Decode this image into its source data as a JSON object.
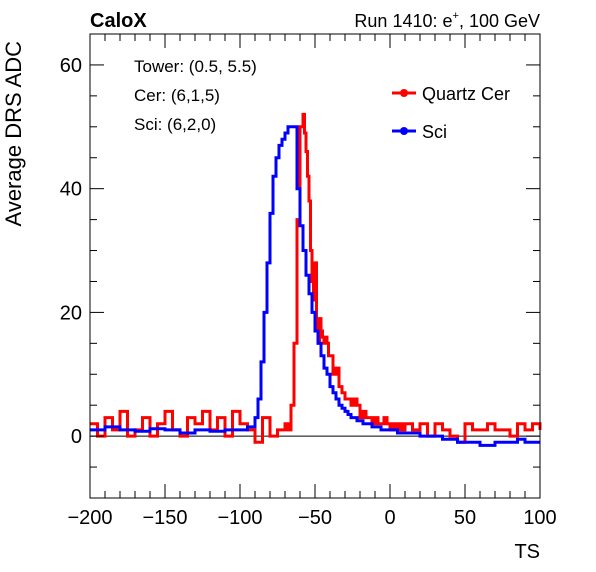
{
  "header": {
    "brand": "CaloX",
    "run_prefix": "Run 1410: e",
    "run_sup": "+",
    "run_suffix": ", 100 GeV"
  },
  "info": {
    "tower": "Tower: (0.5, 5.5)",
    "cer": "Cer: (6,1,5)",
    "sci": "Sci: (6,2,0)"
  },
  "colors": {
    "cer": "#ff0000",
    "sci": "#0000ff",
    "axis": "#000000"
  },
  "chart_data": {
    "type": "line",
    "title": "",
    "xlabel": "TS",
    "ylabel": "Average DRS ADC",
    "xlim": [
      -200,
      100
    ],
    "ylim": [
      -10,
      65
    ],
    "x_ticks": [
      -200,
      -150,
      -100,
      -50,
      0,
      50,
      100
    ],
    "x_tick_labels": [
      "−200",
      "−150",
      "−100",
      "−50",
      "0",
      "50",
      "100"
    ],
    "y_ticks": [
      0,
      20,
      40,
      60
    ],
    "y_tick_labels": [
      "0",
      "20",
      "40",
      "60"
    ],
    "grid": false,
    "zero_line": true,
    "legend_position": "top-right",
    "series": [
      {
        "name": "Quartz Cer",
        "color": "#ff0000",
        "x": [
          -200,
          -195,
          -190,
          -185,
          -180,
          -175,
          -170,
          -165,
          -160,
          -155,
          -150,
          -145,
          -140,
          -135,
          -130,
          -125,
          -120,
          -115,
          -110,
          -105,
          -100,
          -95,
          -90,
          -85,
          -80,
          -75,
          -70,
          -68,
          -66,
          -64,
          -62,
          -60,
          -58,
          -57,
          -56,
          -55,
          -54,
          -53,
          -52,
          -51,
          -50,
          -49,
          -48,
          -47,
          -46,
          -45,
          -44,
          -43,
          -42,
          -41,
          -40,
          -38,
          -36,
          -34,
          -32,
          -30,
          -28,
          -26,
          -24,
          -22,
          -20,
          -18,
          -16,
          -14,
          -12,
          -10,
          -8,
          -6,
          -4,
          -2,
          0,
          2,
          4,
          6,
          8,
          10,
          15,
          20,
          25,
          30,
          35,
          40,
          45,
          50,
          55,
          60,
          65,
          70,
          75,
          80,
          85,
          90,
          95,
          100
        ],
        "y": [
          2,
          0,
          3,
          1,
          4,
          0,
          1,
          3,
          0,
          2,
          4,
          1,
          0,
          3,
          2,
          4,
          1,
          3,
          0,
          4,
          2,
          1,
          -1,
          3,
          0,
          1,
          2,
          1,
          5,
          15,
          35,
          50,
          52,
          49,
          46,
          42,
          38,
          30,
          25,
          22,
          28,
          18,
          15,
          19,
          17,
          16,
          15,
          16,
          15,
          13,
          13,
          10,
          11,
          8,
          7,
          6,
          6,
          5,
          6,
          5,
          3,
          4,
          3,
          3,
          2,
          3,
          2,
          2,
          3,
          2,
          1,
          2,
          1,
          2,
          1,
          2,
          1,
          2,
          0,
          2,
          1,
          0,
          -1,
          2,
          1,
          1,
          2,
          1,
          1,
          0,
          2,
          1,
          2,
          1
        ]
      },
      {
        "name": "Sci",
        "color": "#0000ff",
        "x": [
          -200,
          -190,
          -180,
          -170,
          -160,
          -150,
          -140,
          -130,
          -120,
          -110,
          -100,
          -95,
          -90,
          -88,
          -86,
          -84,
          -82,
          -80,
          -78,
          -76,
          -74,
          -72,
          -70,
          -68,
          -66,
          -64,
          -62,
          -60,
          -58,
          -56,
          -54,
          -52,
          -50,
          -48,
          -46,
          -44,
          -42,
          -40,
          -38,
          -36,
          -34,
          -32,
          -30,
          -28,
          -26,
          -24,
          -22,
          -20,
          -18,
          -16,
          -14,
          -12,
          -10,
          -8,
          -6,
          -4,
          -2,
          0,
          5,
          10,
          15,
          20,
          25,
          30,
          35,
          40,
          45,
          50,
          55,
          60,
          65,
          70,
          75,
          80,
          85,
          90,
          95,
          100
        ],
        "y": [
          1,
          1.5,
          1,
          0.8,
          1.2,
          1,
          0.5,
          1,
          0.8,
          1,
          1,
          1.5,
          3,
          6,
          12,
          20,
          28,
          36,
          42,
          45,
          47,
          48,
          49,
          50,
          50,
          50,
          40,
          34,
          30,
          26,
          23,
          20,
          17,
          15,
          13,
          11,
          10,
          8,
          7,
          6,
          5,
          4.5,
          4,
          3.5,
          3,
          3,
          2.5,
          2.5,
          2,
          2,
          2,
          1.5,
          1.5,
          1.5,
          1,
          1,
          1,
          1,
          0.5,
          0.5,
          0.5,
          0,
          0,
          0,
          -0.5,
          -0.5,
          -1,
          -1,
          -1,
          -1.5,
          -1.5,
          -1,
          -1,
          -1,
          -0.5,
          -1,
          -1,
          -1
        ]
      }
    ]
  }
}
